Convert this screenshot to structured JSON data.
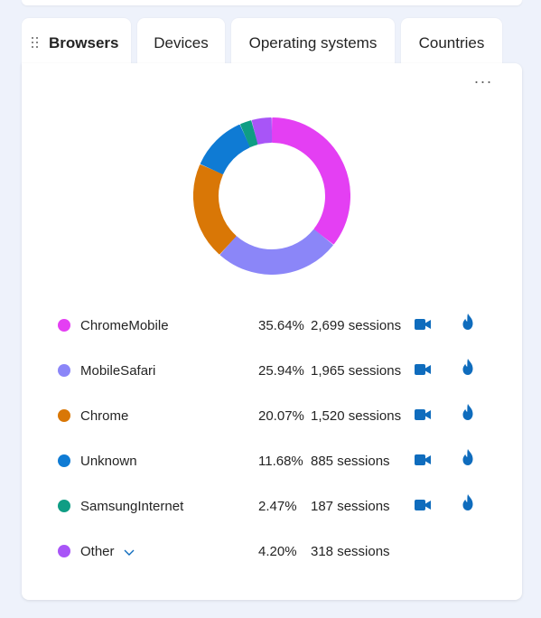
{
  "tabs": [
    {
      "id": "browsers",
      "label": "Browsers",
      "active": true
    },
    {
      "id": "devices",
      "label": "Devices",
      "active": false
    },
    {
      "id": "os",
      "label": "Operating systems",
      "active": false
    },
    {
      "id": "countries",
      "label": "Countries",
      "active": false
    }
  ],
  "card": {
    "more_label": "···"
  },
  "chart_data": {
    "type": "pie",
    "style": "donut",
    "labels": [
      "ChromeMobile",
      "MobileSafari",
      "Chrome",
      "Unknown",
      "SamsungInternet",
      "Other"
    ],
    "values": [
      35.64,
      25.94,
      20.07,
      11.68,
      2.47,
      4.2
    ],
    "colors": [
      "#e43ff3",
      "#8b86f8",
      "#d97706",
      "#0f7bd4",
      "#0f9d84",
      "#a855f7"
    ]
  },
  "legend": {
    "items": [
      {
        "label": "ChromeMobile",
        "percent": "35.64%",
        "sessions": "2,699 sessions",
        "color": "#e43ff3",
        "has_actions": true
      },
      {
        "label": "MobileSafari",
        "percent": "25.94%",
        "sessions": "1,965 sessions",
        "color": "#8b86f8",
        "has_actions": true
      },
      {
        "label": "Chrome",
        "percent": "20.07%",
        "sessions": "1,520 sessions",
        "color": "#d97706",
        "has_actions": true
      },
      {
        "label": "Unknown",
        "percent": "11.68%",
        "sessions": "885 sessions",
        "color": "#0f7bd4",
        "has_actions": true
      },
      {
        "label": "SamsungInternet",
        "percent": "2.47%",
        "sessions": "187 sessions",
        "color": "#0f9d84",
        "has_actions": true
      },
      {
        "label": "Other",
        "percent": "4.20%",
        "sessions": "318 sessions",
        "color": "#a855f7",
        "has_actions": false,
        "expandable": true
      }
    ]
  },
  "icons": {
    "recording": "video-camera-icon",
    "heatmap": "flame-icon",
    "expand": "chevron-down-icon",
    "drag": "drag-handle-icon"
  },
  "colors": {
    "accent": "#0f6cbd",
    "background": "#eef2fb",
    "card": "#ffffff"
  }
}
